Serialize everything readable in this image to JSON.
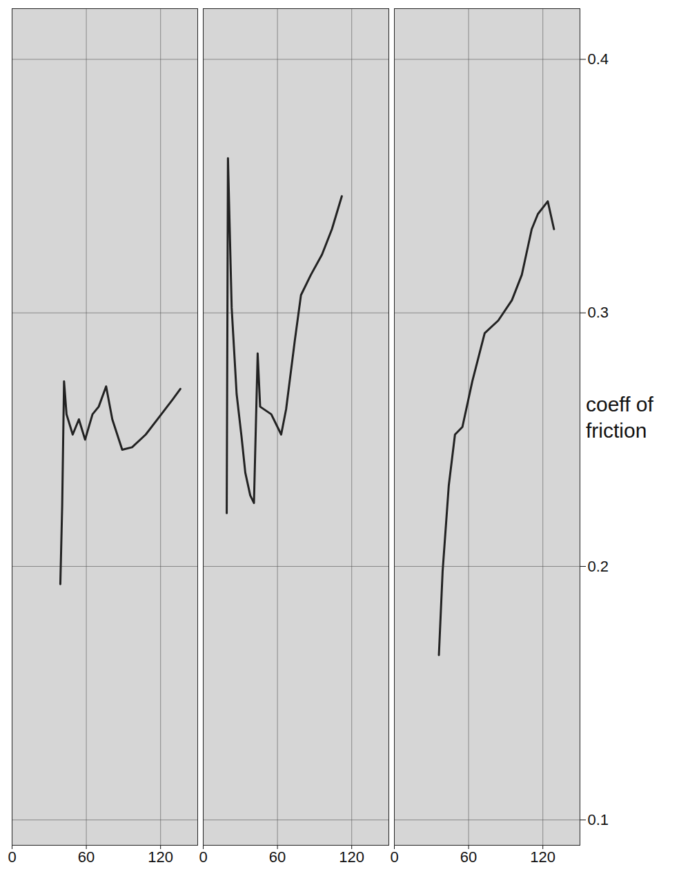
{
  "chart_data": {
    "type": "line",
    "y_label": "coeff of friction",
    "xlim": [
      0,
      150
    ],
    "xticks": [
      0,
      60,
      120
    ],
    "ylim": [
      0.09,
      0.42
    ],
    "yticks": [
      0.1,
      0.2,
      0.3,
      0.4
    ],
    "grid": true,
    "color": "#222222",
    "series": [
      {
        "x": [
          39,
          40.5,
          42,
          44,
          49,
          54,
          59,
          65,
          70,
          76,
          81,
          89,
          97,
          108,
          119,
          130,
          136
        ],
        "values": [
          0.193,
          0.224,
          0.273,
          0.26,
          0.252,
          0.258,
          0.25,
          0.26,
          0.263,
          0.271,
          0.258,
          0.246,
          0.247,
          0.252,
          0.259,
          0.266,
          0.27
        ]
      },
      {
        "x": [
          19,
          20,
          23,
          27,
          31,
          34,
          38,
          41,
          44,
          46,
          55,
          63,
          67,
          74,
          79,
          87,
          96,
          104,
          112
        ],
        "values": [
          0.221,
          0.361,
          0.302,
          0.268,
          0.251,
          0.237,
          0.228,
          0.225,
          0.284,
          0.263,
          0.26,
          0.252,
          0.262,
          0.289,
          0.307,
          0.315,
          0.323,
          0.333,
          0.346
        ]
      },
      {
        "x": [
          36,
          39,
          44,
          49,
          55,
          63,
          73,
          84,
          95,
          103,
          111,
          116,
          124,
          129
        ],
        "values": [
          0.165,
          0.198,
          0.232,
          0.252,
          0.255,
          0.273,
          0.292,
          0.297,
          0.305,
          0.315,
          0.333,
          0.339,
          0.344,
          0.333
        ]
      }
    ]
  }
}
